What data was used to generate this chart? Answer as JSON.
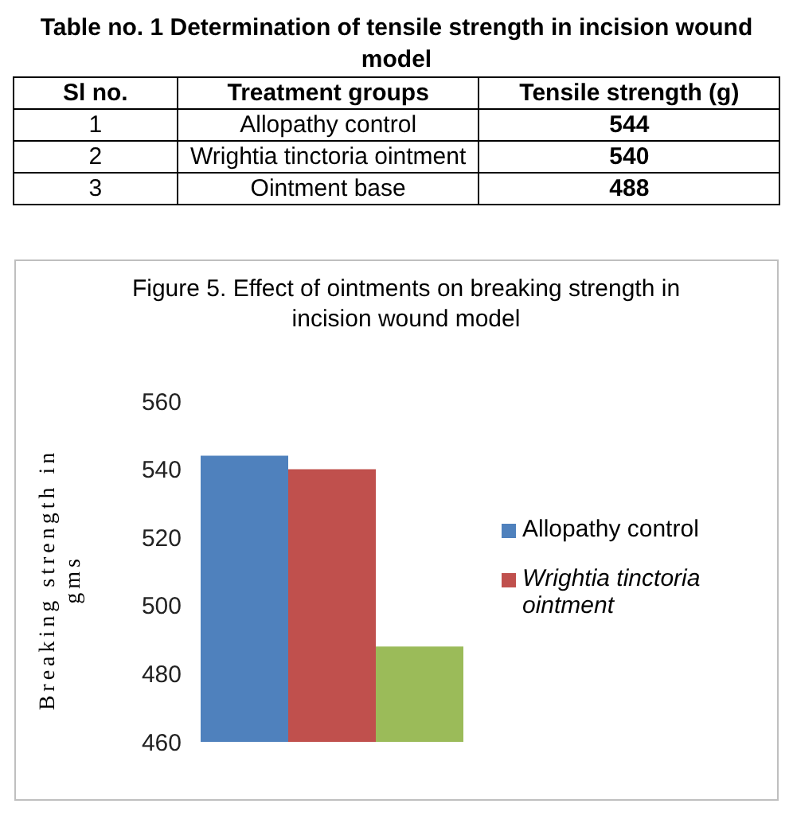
{
  "chart_data": [
    {
      "type": "other",
      "title": "Table no. 1 Determination of tensile strength in incision wound model",
      "categories": [
        "Sl no.",
        "Treatment groups",
        "Tensile strength (g)"
      ],
      "cells": [
        [
          "1",
          "Allopathy control",
          "544"
        ],
        [
          "2",
          "Wrightia tinctoria ointment",
          "540"
        ],
        [
          "3",
          "Ointment base",
          "488"
        ]
      ]
    },
    {
      "type": "bar",
      "title": "Figure 5. Effect of ointments on breaking strength in incision wound model",
      "ylabel": "Breaking strength in gms",
      "categories": [
        null
      ],
      "series": [
        {
          "name": "Allopathy control",
          "color": "#4f81bd",
          "values": [
            544
          ]
        },
        {
          "name": "Wrightia tinctoria ointment",
          "color": "#c0504d",
          "values": [
            540
          ]
        },
        {
          "color": "#9bbb59",
          "values": [
            488
          ]
        }
      ],
      "ylim": [
        460,
        560
      ],
      "yticks": [
        460,
        480,
        500,
        520,
        540,
        560
      ],
      "grid": false,
      "legend": "right"
    }
  ]
}
